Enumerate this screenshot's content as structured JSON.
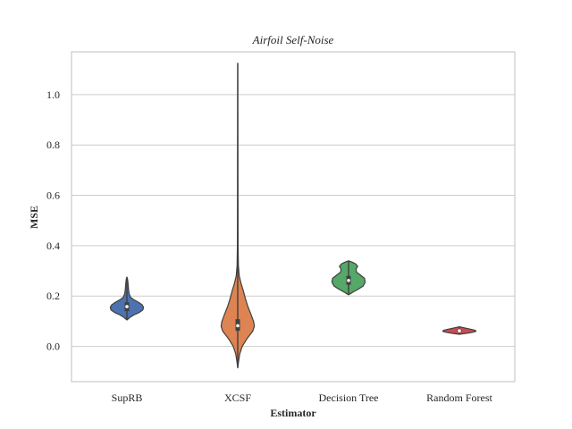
{
  "chart_data": {
    "type": "violin",
    "title": "Airfoil Self-Noise",
    "xlabel": "Estimator",
    "ylabel": "MSE",
    "categories": [
      "SupRB",
      "XCSF",
      "Decision Tree",
      "Random Forest"
    ],
    "ylim": [
      -0.14,
      1.17
    ],
    "yticks": [
      0.0,
      0.2,
      0.4,
      0.6,
      0.8,
      1.0
    ],
    "ytick_labels": [
      "0.0",
      "0.2",
      "0.4",
      "0.6",
      "0.8",
      "1.0"
    ],
    "grid": "horizontal",
    "colors": [
      "#4c72b0",
      "#dd8452",
      "#55a868",
      "#c44e52"
    ],
    "violins": [
      {
        "name": "SupRB",
        "min": 0.105,
        "max": 0.275,
        "q1": 0.14,
        "median": 0.158,
        "q3": 0.175,
        "profile": [
          [
            0.105,
            0.0
          ],
          [
            0.115,
            0.18
          ],
          [
            0.125,
            0.42
          ],
          [
            0.135,
            0.75
          ],
          [
            0.145,
            0.96
          ],
          [
            0.155,
            1.0
          ],
          [
            0.165,
            0.92
          ],
          [
            0.175,
            0.7
          ],
          [
            0.185,
            0.42
          ],
          [
            0.195,
            0.22
          ],
          [
            0.21,
            0.13
          ],
          [
            0.225,
            0.1
          ],
          [
            0.24,
            0.08
          ],
          [
            0.255,
            0.06
          ],
          [
            0.268,
            0.035
          ],
          [
            0.275,
            0.0
          ]
        ]
      },
      {
        "name": "XCSF",
        "min": -0.085,
        "max": 1.125,
        "q1": 0.062,
        "median": 0.082,
        "q3": 0.108,
        "profile": [
          [
            -0.085,
            0.0
          ],
          [
            -0.06,
            0.05
          ],
          [
            -0.03,
            0.12
          ],
          [
            0.0,
            0.27
          ],
          [
            0.03,
            0.55
          ],
          [
            0.06,
            0.9
          ],
          [
            0.08,
            1.0
          ],
          [
            0.1,
            0.95
          ],
          [
            0.13,
            0.78
          ],
          [
            0.16,
            0.6
          ],
          [
            0.19,
            0.46
          ],
          [
            0.22,
            0.34
          ],
          [
            0.25,
            0.2
          ],
          [
            0.28,
            0.09
          ],
          [
            0.32,
            0.04
          ],
          [
            0.4,
            0.02
          ],
          [
            0.6,
            0.012
          ],
          [
            0.85,
            0.007
          ],
          [
            1.125,
            0.0
          ]
        ]
      },
      {
        "name": "Decision Tree",
        "min": 0.205,
        "max": 0.34,
        "q1": 0.245,
        "median": 0.262,
        "q3": 0.28,
        "profile": [
          [
            0.205,
            0.0
          ],
          [
            0.215,
            0.25
          ],
          [
            0.228,
            0.6
          ],
          [
            0.24,
            0.88
          ],
          [
            0.255,
            1.0
          ],
          [
            0.27,
            0.96
          ],
          [
            0.283,
            0.72
          ],
          [
            0.295,
            0.48
          ],
          [
            0.307,
            0.45
          ],
          [
            0.318,
            0.55
          ],
          [
            0.328,
            0.42
          ],
          [
            0.335,
            0.2
          ],
          [
            0.34,
            0.0
          ]
        ]
      },
      {
        "name": "Random Forest",
        "min": 0.048,
        "max": 0.078,
        "q1": 0.057,
        "median": 0.062,
        "q3": 0.068,
        "profile": [
          [
            0.048,
            0.0
          ],
          [
            0.052,
            0.45
          ],
          [
            0.056,
            0.8
          ],
          [
            0.06,
            1.0
          ],
          [
            0.064,
            0.95
          ],
          [
            0.068,
            0.7
          ],
          [
            0.072,
            0.42
          ],
          [
            0.075,
            0.2
          ],
          [
            0.078,
            0.0
          ]
        ]
      }
    ]
  }
}
